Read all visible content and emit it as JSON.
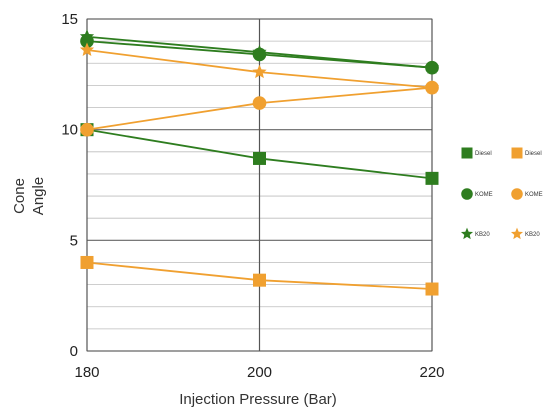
{
  "chart_data": {
    "type": "line",
    "xlabel": "Injection Pressure (Bar)",
    "ylabel_lines": [
      "Cone",
      "Angle"
    ],
    "x": [
      180,
      200,
      220
    ],
    "xlim": [
      180,
      220
    ],
    "ylim": [
      0,
      15
    ],
    "x_ticks": [
      "180",
      "200",
      "220"
    ],
    "y_ticks": [
      "0",
      "5",
      "10",
      "15"
    ],
    "grid": true,
    "legend_position": "right",
    "series": [
      {
        "name": "Diesel",
        "values": [
          10.0,
          8.7,
          7.8
        ],
        "color": "#2e7d1f",
        "marker": "square"
      },
      {
        "name": "KOME",
        "values": [
          14.0,
          13.4,
          12.8
        ],
        "color": "#2e7d1f",
        "marker": "circle"
      },
      {
        "name": "KB20",
        "values": [
          14.2,
          13.5,
          12.8
        ],
        "color": "#2e7d1f",
        "marker": "triangle"
      },
      {
        "name": "Diesel",
        "values": [
          4.0,
          3.2,
          2.8
        ],
        "color": "#f0a030",
        "marker": "square"
      },
      {
        "name": "KOME",
        "values": [
          10.0,
          11.2,
          11.9
        ],
        "color": "#f0a030",
        "marker": "circle"
      },
      {
        "name": "KB20",
        "values": [
          13.6,
          12.6,
          11.9
        ],
        "color": "#f0a030",
        "marker": "triangle"
      }
    ]
  }
}
